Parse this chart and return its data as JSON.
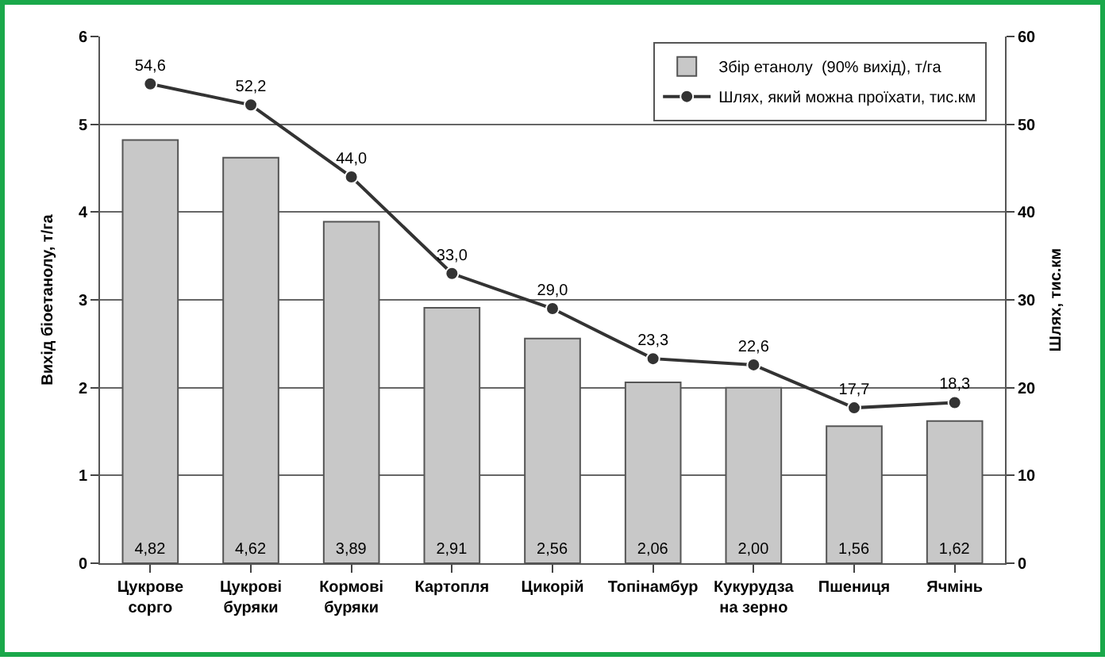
{
  "chart_data": {
    "type": "bar",
    "ylabel": "Вихід біоетанолу, т/га",
    "y2label": "Шлях, тис.км",
    "categories": [
      "Цукрове\nсорго",
      "Цукрові\nбуряки",
      "Кормові\nбуряки",
      "Картопля",
      "Цикорій",
      "Топінамбур",
      "Кукурудза\nна зерно",
      "Пшениця",
      "Ячмінь"
    ],
    "series": [
      {
        "name": "Збір етанолу  (90% вихід), т/га",
        "color": "#c8c8c8",
        "values": [
          4.82,
          4.62,
          3.89,
          2.91,
          2.56,
          2.06,
          2.0,
          1.56,
          1.62
        ],
        "value_labels": [
          "4,82",
          "4,62",
          "3,89",
          "2,91",
          "2,56",
          "2,06",
          "2,00",
          "1,56",
          "1,62"
        ]
      },
      {
        "name": "Шлях, який можна проїхати, тис.км",
        "type": "line",
        "axis": "y2",
        "color": "#333333",
        "marker": "circle",
        "values": [
          54.6,
          52.2,
          44.0,
          33.0,
          29.0,
          23.3,
          22.6,
          17.7,
          18.3
        ],
        "value_labels": [
          "54,6",
          "52,2",
          "44,0",
          "33,0",
          "29,0",
          "23,3",
          "22,6",
          "17,7",
          "18,3"
        ]
      }
    ],
    "ylim": [
      0,
      6
    ],
    "yticks": [
      0,
      1,
      2,
      3,
      4,
      5,
      6
    ],
    "y2lim": [
      0,
      60
    ],
    "y2ticks": [
      0,
      10,
      20,
      30,
      40,
      50,
      60
    ],
    "grid": "y",
    "legend": "top right"
  }
}
